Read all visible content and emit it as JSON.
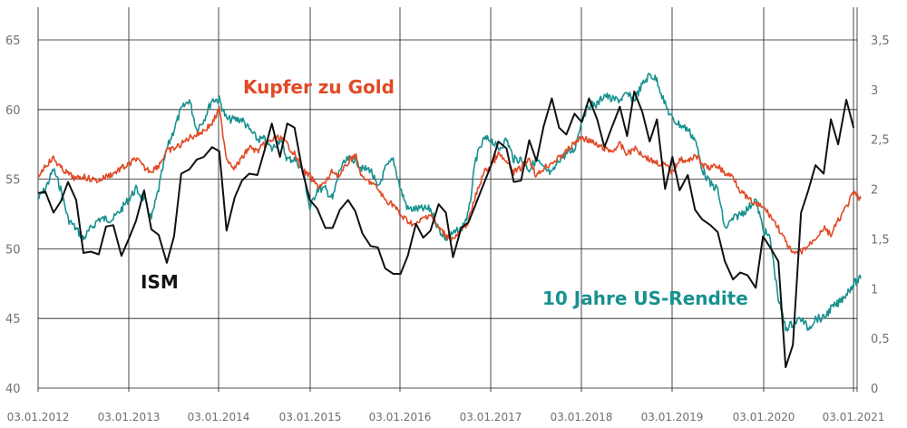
{
  "chart_data": {
    "type": "line",
    "x_ticks": [
      "03.01.2012",
      "03.01.2013",
      "03.01.2014",
      "03.01.2015",
      "03.01.2016",
      "03.01.2017",
      "03.01.2018",
      "03.01.2019",
      "03.01.2020",
      "03.01.2021"
    ],
    "left_axis": {
      "range": [
        40,
        65
      ],
      "ticks": [
        "40",
        "45",
        "50",
        "55",
        "60",
        "65"
      ]
    },
    "right_axis": {
      "range": [
        0,
        3.5
      ],
      "ticks": [
        "0",
        "0,5",
        "1",
        "1,5",
        "2",
        "2,5",
        "3",
        "3,5"
      ]
    },
    "grid": true,
    "series": [
      {
        "name": "ISM",
        "axis": "left",
        "color": "#111111",
        "x": [
          2012.0,
          2012.08,
          2012.17,
          2012.25,
          2012.33,
          2012.42,
          2012.5,
          2012.58,
          2012.67,
          2012.75,
          2012.83,
          2012.92,
          2013.0,
          2013.08,
          2013.17,
          2013.25,
          2013.33,
          2013.42,
          2013.5,
          2013.58,
          2013.67,
          2013.75,
          2013.83,
          2013.92,
          2014.0,
          2014.08,
          2014.17,
          2014.25,
          2014.33,
          2014.42,
          2014.5,
          2014.58,
          2014.67,
          2014.75,
          2014.83,
          2014.92,
          2015.0,
          2015.08,
          2015.17,
          2015.25,
          2015.33,
          2015.42,
          2015.5,
          2015.58,
          2015.67,
          2015.75,
          2015.83,
          2015.92,
          2016.0,
          2016.08,
          2016.17,
          2016.25,
          2016.33,
          2016.42,
          2016.5,
          2016.58,
          2016.67,
          2016.75,
          2016.83,
          2016.92,
          2017.0,
          2017.08,
          2017.17,
          2017.25,
          2017.33,
          2017.42,
          2017.5,
          2017.58,
          2017.67,
          2017.75,
          2017.83,
          2017.92,
          2018.0,
          2018.08,
          2018.17,
          2018.25,
          2018.33,
          2018.42,
          2018.5,
          2018.58,
          2018.67,
          2018.75,
          2018.83,
          2018.92,
          2019.0,
          2019.08,
          2019.17,
          2019.25,
          2019.33,
          2019.42,
          2019.5,
          2019.58,
          2019.67,
          2019.75,
          2019.83,
          2019.92,
          2020.0,
          2020.08,
          2020.17,
          2020.25,
          2020.33,
          2020.42,
          2020.5,
          2020.58,
          2020.67,
          2020.75,
          2020.83,
          2020.92,
          2021.0,
          2021.08
        ],
        "values": [
          54.0,
          54.1,
          52.6,
          53.4,
          54.8,
          53.5,
          49.7,
          49.8,
          49.6,
          51.6,
          51.7,
          49.5,
          50.7,
          52.0,
          54.2,
          51.4,
          51.0,
          49.0,
          50.9,
          55.4,
          55.7,
          56.4,
          56.6,
          57.3,
          57.0,
          51.3,
          53.7,
          54.9,
          55.4,
          55.3,
          57.1,
          59.0,
          56.6,
          59.0,
          58.7,
          55.5,
          53.5,
          52.9,
          51.5,
          51.5,
          52.8,
          53.5,
          52.7,
          51.1,
          50.2,
          50.1,
          48.6,
          48.2,
          48.2,
          49.5,
          51.8,
          50.8,
          51.3,
          53.2,
          52.6,
          49.4,
          51.5,
          51.9,
          53.2,
          54.7,
          56.0,
          57.7,
          57.2,
          54.8,
          54.9,
          57.8,
          56.3,
          58.8,
          60.8,
          58.7,
          58.2,
          59.7,
          59.1,
          60.8,
          59.3,
          57.3,
          58.7,
          60.2,
          58.1,
          61.3,
          59.8,
          57.7,
          59.3,
          54.3,
          56.6,
          54.2,
          55.3,
          52.8,
          52.1,
          51.7,
          51.2,
          49.1,
          47.8,
          48.3,
          48.1,
          47.2,
          50.9,
          50.1,
          49.1,
          41.5,
          43.1,
          52.6,
          54.2,
          56.0,
          55.4,
          59.3,
          57.5,
          60.7,
          58.7,
          null
        ]
      },
      {
        "name": "Kupfer zu Gold",
        "axis": "left",
        "color": "#e04a25",
        "x": [
          2012.0,
          2012.08,
          2012.17,
          2012.25,
          2012.33,
          2012.42,
          2012.5,
          2012.58,
          2012.67,
          2012.75,
          2012.83,
          2012.92,
          2013.0,
          2013.08,
          2013.17,
          2013.25,
          2013.33,
          2013.42,
          2013.5,
          2013.58,
          2013.67,
          2013.75,
          2013.83,
          2013.92,
          2014.0,
          2014.08,
          2014.17,
          2014.25,
          2014.33,
          2014.42,
          2014.5,
          2014.58,
          2014.67,
          2014.75,
          2014.83,
          2014.92,
          2015.0,
          2015.08,
          2015.17,
          2015.25,
          2015.33,
          2015.42,
          2015.5,
          2015.58,
          2015.67,
          2015.75,
          2015.83,
          2015.92,
          2016.0,
          2016.08,
          2016.17,
          2016.25,
          2016.33,
          2016.42,
          2016.5,
          2016.58,
          2016.67,
          2016.75,
          2016.83,
          2016.92,
          2017.0,
          2017.08,
          2017.17,
          2017.25,
          2017.33,
          2017.42,
          2017.5,
          2017.58,
          2017.67,
          2017.75,
          2017.83,
          2017.92,
          2018.0,
          2018.08,
          2018.17,
          2018.25,
          2018.33,
          2018.42,
          2018.5,
          2018.58,
          2018.67,
          2018.75,
          2018.83,
          2018.92,
          2019.0,
          2019.08,
          2019.17,
          2019.25,
          2019.33,
          2019.42,
          2019.5,
          2019.58,
          2019.67,
          2019.75,
          2019.83,
          2019.92,
          2020.0,
          2020.08,
          2020.17,
          2020.25,
          2020.33,
          2020.42,
          2020.5,
          2020.58,
          2020.67,
          2020.75,
          2020.83,
          2020.92,
          2021.0,
          2021.08
        ],
        "values": [
          55.2,
          56.0,
          56.5,
          55.8,
          55.4,
          55.0,
          55.2,
          55.0,
          54.9,
          55.2,
          55.4,
          55.8,
          56.0,
          56.5,
          55.8,
          55.6,
          56.0,
          57.0,
          57.2,
          57.5,
          58.0,
          58.2,
          58.5,
          59.0,
          60.0,
          56.5,
          55.8,
          56.5,
          57.3,
          57.0,
          57.5,
          57.8,
          58.0,
          57.5,
          56.8,
          55.6,
          55.2,
          54.5,
          54.7,
          55.6,
          55.2,
          56.2,
          56.8,
          55.0,
          54.8,
          54.3,
          53.5,
          53.2,
          52.4,
          52.0,
          51.7,
          52.2,
          52.5,
          51.5,
          51.0,
          50.7,
          51.2,
          52.0,
          53.8,
          55.5,
          56.0,
          56.8,
          56.2,
          55.5,
          55.8,
          56.5,
          55.2,
          55.8,
          56.2,
          56.5,
          57.0,
          57.6,
          58.0,
          57.8,
          57.4,
          57.2,
          57.0,
          57.5,
          56.8,
          57.2,
          56.8,
          56.4,
          56.2,
          56.0,
          55.5,
          56.5,
          56.2,
          56.8,
          56.0,
          55.8,
          56.0,
          55.4,
          55.2,
          54.2,
          53.6,
          53.2,
          53.0,
          52.4,
          51.5,
          50.5,
          49.6,
          49.8,
          50.2,
          50.8,
          51.5,
          51.0,
          52.0,
          53.0,
          54.0,
          53.6
        ]
      },
      {
        "name": "10 Jahre US-Rendite",
        "axis": "right",
        "color": "#17918f",
        "x": [
          2012.0,
          2012.08,
          2012.17,
          2012.25,
          2012.33,
          2012.42,
          2012.5,
          2012.58,
          2012.67,
          2012.75,
          2012.83,
          2012.92,
          2013.0,
          2013.08,
          2013.17,
          2013.25,
          2013.33,
          2013.42,
          2013.5,
          2013.58,
          2013.67,
          2013.75,
          2013.83,
          2013.92,
          2014.0,
          2014.08,
          2014.17,
          2014.25,
          2014.33,
          2014.42,
          2014.5,
          2014.58,
          2014.67,
          2014.75,
          2014.83,
          2014.92,
          2015.0,
          2015.08,
          2015.17,
          2015.25,
          2015.33,
          2015.42,
          2015.5,
          2015.58,
          2015.67,
          2015.75,
          2015.83,
          2015.92,
          2016.0,
          2016.08,
          2016.17,
          2016.25,
          2016.33,
          2016.42,
          2016.5,
          2016.58,
          2016.67,
          2016.75,
          2016.83,
          2016.92,
          2017.0,
          2017.08,
          2017.17,
          2017.25,
          2017.33,
          2017.42,
          2017.5,
          2017.58,
          2017.67,
          2017.75,
          2017.83,
          2017.92,
          2018.0,
          2018.08,
          2018.17,
          2018.25,
          2018.33,
          2018.42,
          2018.5,
          2018.58,
          2018.67,
          2018.75,
          2018.83,
          2018.92,
          2019.0,
          2019.08,
          2019.17,
          2019.25,
          2019.33,
          2019.42,
          2019.5,
          2019.58,
          2019.67,
          2019.75,
          2019.83,
          2019.92,
          2020.0,
          2020.08,
          2020.17,
          2020.25,
          2020.33,
          2020.42,
          2020.5,
          2020.58,
          2020.67,
          2020.75,
          2020.83,
          2020.92,
          2021.0,
          2021.08
        ],
        "values": [
          1.9,
          2.0,
          2.2,
          2.0,
          1.7,
          1.6,
          1.5,
          1.6,
          1.7,
          1.7,
          1.7,
          1.8,
          1.9,
          2.0,
          1.9,
          1.7,
          2.0,
          2.4,
          2.6,
          2.8,
          2.9,
          2.6,
          2.7,
          2.9,
          2.9,
          2.7,
          2.7,
          2.7,
          2.6,
          2.5,
          2.5,
          2.4,
          2.5,
          2.3,
          2.3,
          2.2,
          1.8,
          2.0,
          2.0,
          1.9,
          2.2,
          2.3,
          2.3,
          2.2,
          2.2,
          2.0,
          2.2,
          2.3,
          2.0,
          1.8,
          1.8,
          1.8,
          1.8,
          1.6,
          1.5,
          1.55,
          1.6,
          1.75,
          2.3,
          2.5,
          2.5,
          2.4,
          2.5,
          2.3,
          2.3,
          2.2,
          2.3,
          2.2,
          2.15,
          2.3,
          2.35,
          2.4,
          2.7,
          2.85,
          2.85,
          2.95,
          2.9,
          2.9,
          2.95,
          2.9,
          3.05,
          3.15,
          3.1,
          2.85,
          2.7,
          2.65,
          2.6,
          2.5,
          2.2,
          2.05,
          2.0,
          1.6,
          1.7,
          1.75,
          1.8,
          1.9,
          1.6,
          1.5,
          0.9,
          0.6,
          0.65,
          0.7,
          0.6,
          0.7,
          0.7,
          0.8,
          0.85,
          0.95,
          1.05,
          1.1
        ]
      }
    ]
  }
}
